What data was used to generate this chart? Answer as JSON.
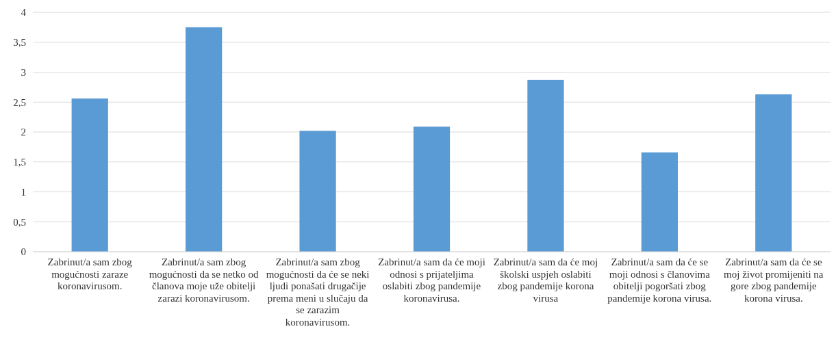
{
  "chart_data": {
    "type": "bar",
    "categories": [
      "Zabrinut/a sam zbog mogućnosti zaraze koronavirusom.",
      "Zabrinut/a sam zbog mogućnosti da se netko od članova moje uže obitelji zarazi koronavirusom.",
      "Zabrinut/a sam zbog mogućnosti da će se neki ljudi ponašati drugačije prema meni u slučaju da se zarazim koronavirusom.",
      "Zabrinut/a sam da će moji odnosi s prijateljima oslabiti zbog pandemije koronavirusa.",
      "Zabrinut/a sam da će moj školski uspjeh oslabiti zbog pandemije korona virusa",
      "Zabrinut/a sam da će se moji odnosi s članovima obitelji pogoršati zbog pandemije korona virusa.",
      "Zabrinut/a sam da će se moj život promijeniti na gore zbog pandemije korona virusa."
    ],
    "values": [
      2.56,
      3.75,
      2.02,
      2.09,
      2.87,
      1.66,
      2.63
    ],
    "color": "#5b9bd5",
    "ylim": [
      0,
      4
    ],
    "yticks": [
      0,
      {
        "value": 0.5,
        "label": "0,5"
      },
      1,
      {
        "value": 1.5,
        "label": "1,5"
      },
      2,
      {
        "value": 2.5,
        "label": "2,5"
      },
      3,
      {
        "value": 3.5,
        "label": "3,5"
      },
      4
    ],
    "grid": "y"
  }
}
